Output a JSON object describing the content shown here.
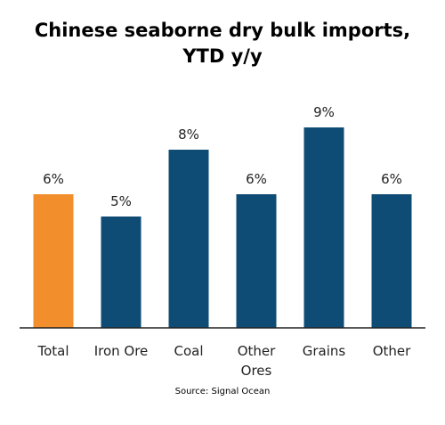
{
  "chart_data": {
    "type": "bar",
    "title_lines": [
      "Chinese seaborne dry bulk imports,",
      "YTD y/y"
    ],
    "categories": [
      [
        "Total"
      ],
      [
        "Iron Ore"
      ],
      [
        "Coal"
      ],
      [
        "Other",
        "Ores"
      ],
      [
        "Grains"
      ],
      [
        "Other"
      ]
    ],
    "values": [
      6,
      5,
      8,
      6,
      9,
      6
    ],
    "value_labels": [
      "6%",
      "5%",
      "8%",
      "6%",
      "9%",
      "6%"
    ],
    "bar_colors": [
      "#f28e2b",
      "#0f4c75",
      "#0f4c75",
      "#0f4c75",
      "#0f4c75",
      "#0f4c75"
    ],
    "ylim": [
      0,
      10
    ],
    "grid": false,
    "legend": "none",
    "source": "Source: Signal Ocean"
  }
}
